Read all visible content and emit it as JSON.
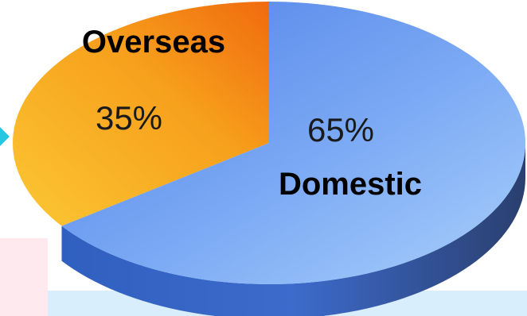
{
  "chart_data": {
    "type": "pie",
    "style": "3d",
    "categories": [
      "Overseas",
      "Domestic"
    ],
    "values": [
      35,
      65
    ],
    "value_labels": [
      "35%",
      "65%"
    ],
    "colors": {
      "Overseas": "#f7a21a",
      "Domestic": "#6f9cf0"
    }
  }
}
